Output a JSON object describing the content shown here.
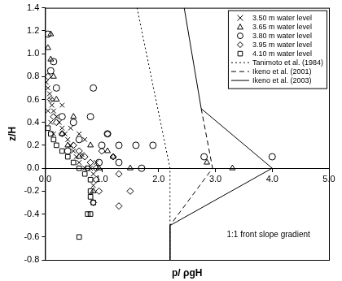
{
  "chart_data": {
    "type": "scatter",
    "x_label": "p/ ρgH",
    "y_label": "z/H",
    "annotation": "1:1 front slope gradient",
    "xlim": [
      0,
      5
    ],
    "ylim": [
      -0.8,
      1.4
    ],
    "xticks": [
      {
        "value": 0,
        "label": "0.0"
      },
      {
        "value": 1,
        "label": "1.0"
      },
      {
        "value": 2,
        "label": "2.0"
      },
      {
        "value": 3,
        "label": "3.0"
      },
      {
        "value": 4,
        "label": "4.0"
      },
      {
        "value": 5,
        "label": "5.0"
      }
    ],
    "yticks": [
      -0.8,
      -0.6,
      -0.4,
      -0.2,
      {
        "value": 0,
        "label": "0.0"
      },
      0.2,
      0.4,
      0.6,
      0.8,
      {
        "value": 1,
        "label": "1.0"
      },
      1.2,
      1.4
    ],
    "grid": false,
    "legend": "upper right",
    "series": [
      {
        "name": "3.50 m water level",
        "type": "scatter",
        "marker": "x",
        "color": "#000000",
        "x": [
          0.02,
          0.05,
          0.08,
          0.1,
          0.12,
          0.15,
          0.05,
          0.2,
          0.25,
          0.3,
          0.35,
          0.4,
          0.45,
          0.5,
          0.55,
          0.6,
          0.7,
          0.8,
          0.9,
          0.6,
          0.7,
          0.85,
          0.85,
          0.15,
          0.3,
          0.1,
          0.45,
          0.65
        ],
        "values": [
          0.75,
          0.7,
          0.65,
          0.6,
          0.55,
          0.5,
          0.5,
          0.45,
          0.4,
          0.35,
          0.3,
          0.25,
          0.2,
          0.15,
          0.1,
          0.05,
          0.0,
          0.0,
          0.05,
          0.3,
          0.25,
          -0.05,
          -0.15,
          0.3,
          0.55,
          0.4,
          0.35,
          0.12
        ]
      },
      {
        "name": "3.65 m water level",
        "type": "scatter",
        "marker": "triangle",
        "color": "#000000",
        "x": [
          0.1,
          0.05,
          0.15,
          0.2,
          0.3,
          0.4,
          0.5,
          0.6,
          0.8,
          1.1,
          1.2,
          0.95,
          1.5,
          2.85,
          3.3,
          0.85,
          0.1
        ],
        "values": [
          1.17,
          1.05,
          0.8,
          0.6,
          0.3,
          0.2,
          0.45,
          0.1,
          0.2,
          0.15,
          0.1,
          0.0,
          0.0,
          0.05,
          0.0,
          -0.2,
          0.95
        ]
      },
      {
        "name": "3.80 m water level",
        "type": "scatter",
        "marker": "circle",
        "color": "#000000",
        "x": [
          0.05,
          0.15,
          0.1,
          0.2,
          0.3,
          0.5,
          0.8,
          0.85,
          1.0,
          1.1,
          1.3,
          1.6,
          1.9,
          1.3,
          1.7,
          2.8,
          4.0,
          0.6,
          0.4,
          0.95
        ],
        "values": [
          1.17,
          0.93,
          0.85,
          0.7,
          0.45,
          0.4,
          0.45,
          0.7,
          0.2,
          0.3,
          0.2,
          0.2,
          0.2,
          0.05,
          0.0,
          0.1,
          0.1,
          0.25,
          0.15,
          0.05
        ]
      },
      {
        "name": "3.95 m water level",
        "type": "scatter",
        "marker": "diamond",
        "color": "#000000",
        "x": [
          0.05,
          0.1,
          0.15,
          0.2,
          0.3,
          0.5,
          0.6,
          0.7,
          0.8,
          0.9,
          1.0,
          1.2,
          1.3,
          1.5,
          1.3,
          0.9,
          0.95,
          1.1,
          0.85
        ],
        "values": [
          0.8,
          0.6,
          0.45,
          0.4,
          0.3,
          0.2,
          0.15,
          0.1,
          0.05,
          0.0,
          0.15,
          0.1,
          -0.05,
          -0.2,
          -0.33,
          -0.1,
          -0.2,
          0.3,
          -0.3
        ]
      },
      {
        "name": "4.10 m water level",
        "type": "scatter",
        "marker": "square",
        "color": "#000000",
        "x": [
          0.05,
          0.1,
          0.15,
          0.2,
          0.3,
          0.4,
          0.5,
          0.6,
          0.7,
          0.8,
          0.8,
          0.8,
          0.85,
          0.75,
          0.8,
          0.6,
          0.75
        ],
        "values": [
          0.35,
          0.3,
          0.25,
          0.2,
          0.15,
          0.1,
          0.05,
          0.0,
          -0.05,
          -0.1,
          -0.2,
          -0.25,
          -0.3,
          -0.4,
          -0.4,
          -0.6,
          0.0
        ]
      },
      {
        "name": "Tanimoto et al. (1984)",
        "type": "line",
        "line_style": "dotted",
        "color": "#000000",
        "x": [
          1.62,
          2.2,
          2.2
        ],
        "values": [
          1.4,
          0.0,
          -0.8
        ]
      },
      {
        "name": "Ikeno et al. (2001)",
        "type": "line",
        "line_style": "dashed",
        "color": "#000000",
        "x": [
          2.75,
          2.95,
          2.2
        ],
        "values": [
          0.52,
          0.0,
          -0.5
        ]
      },
      {
        "name": "Ikeno et al. (2003)",
        "type": "line",
        "line_style": "solid",
        "color": "#000000",
        "x": [
          2.45,
          2.75,
          4.0,
          2.2,
          2.2
        ],
        "values": [
          1.4,
          0.52,
          0.0,
          -0.5,
          -0.8
        ]
      }
    ]
  }
}
